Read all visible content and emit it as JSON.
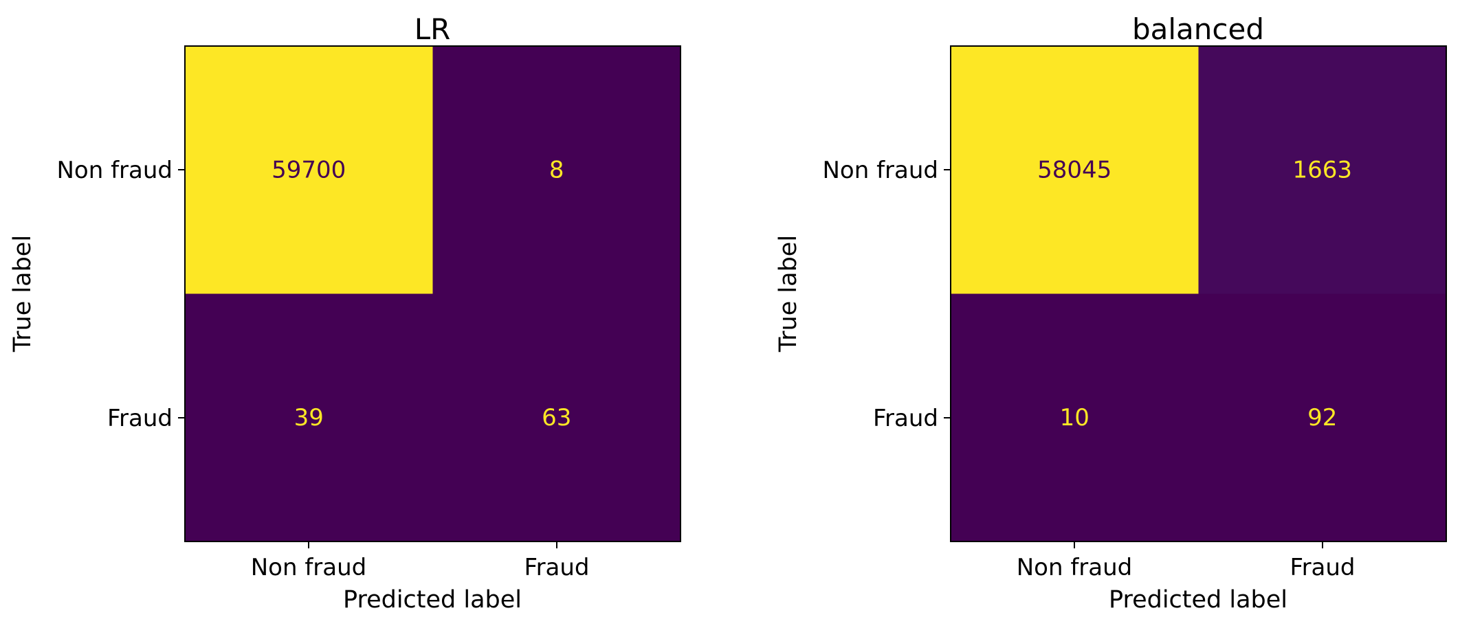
{
  "chart_data": [
    {
      "type": "heatmap",
      "title": "LR",
      "xlabel": "Predicted label",
      "ylabel": "True label",
      "x_categories": [
        "Non fraud",
        "Fraud"
      ],
      "y_categories": [
        "Non fraud",
        "Fraud"
      ],
      "matrix": [
        [
          59700,
          8
        ],
        [
          39,
          63
        ]
      ],
      "colormap": "viridis",
      "grid": false
    },
    {
      "type": "heatmap",
      "title": "balanced",
      "xlabel": "Predicted label",
      "ylabel": "True label",
      "x_categories": [
        "Non fraud",
        "Fraud"
      ],
      "y_categories": [
        "Non fraud",
        "Fraud"
      ],
      "matrix": [
        [
          58045,
          1663
        ],
        [
          10,
          92
        ]
      ],
      "colormap": "viridis",
      "grid": false
    }
  ],
  "colors": {
    "low": "#440154",
    "high": "#fde725",
    "text_on_low": "#fde725",
    "text_on_high": "#440154"
  }
}
